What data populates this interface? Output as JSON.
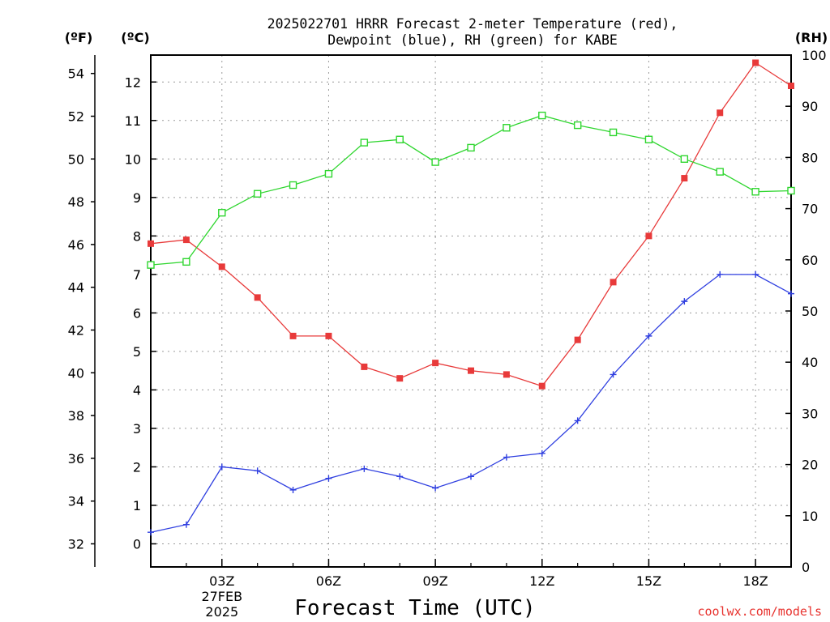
{
  "chart_data": {
    "type": "line",
    "title": "2025022701 HRRR Forecast 2-meter Temperature (red),",
    "subtitle": "Dewpoint (blue), RH (green) for KABE",
    "xlabel": "Forecast Time (UTC)",
    "credit": "coolwx.com/models",
    "units": {
      "fahrenheit": "(ºF)",
      "celsius": "(ºC)",
      "rh": "(RH)"
    },
    "x_hours": [
      1,
      2,
      3,
      4,
      5,
      6,
      7,
      8,
      9,
      10,
      11,
      12,
      13,
      14,
      15,
      16,
      17,
      18,
      19
    ],
    "xlim": [
      1,
      19
    ],
    "x_ticks": [
      {
        "hour": 3,
        "label": "03Z",
        "sub": [
          "27FEB",
          "2025"
        ]
      },
      {
        "hour": 6,
        "label": "06Z",
        "sub": []
      },
      {
        "hour": 9,
        "label": "09Z",
        "sub": []
      },
      {
        "hour": 12,
        "label": "12Z",
        "sub": []
      },
      {
        "hour": 15,
        "label": "15Z",
        "sub": []
      },
      {
        "hour": 18,
        "label": "18Z",
        "sub": []
      }
    ],
    "ylim_celsius": [
      -0.6,
      12.7
    ],
    "celsius_ticks": [
      0,
      1,
      2,
      3,
      4,
      5,
      6,
      7,
      8,
      9,
      10,
      11,
      12
    ],
    "fahrenheit_ticks": [
      32,
      34,
      36,
      38,
      40,
      42,
      44,
      46,
      48,
      50,
      52,
      54
    ],
    "ylim_rh": [
      0,
      100
    ],
    "rh_ticks": [
      0,
      10,
      20,
      30,
      40,
      50,
      60,
      70,
      80,
      90,
      100
    ],
    "grid": true,
    "series": [
      {
        "name": "Temperature",
        "axis": "celsius",
        "color": "#e83a3a",
        "marker": "filled-square",
        "values": [
          7.8,
          7.9,
          7.2,
          6.4,
          5.4,
          5.4,
          4.6,
          4.3,
          4.7,
          4.5,
          4.4,
          4.1,
          5.3,
          6.8,
          8.0,
          9.5,
          11.2,
          12.5,
          11.9
        ]
      },
      {
        "name": "Dewpoint",
        "axis": "celsius",
        "color": "#2f3fe0",
        "marker": "plus",
        "values": [
          0.3,
          0.5,
          2.0,
          1.9,
          1.4,
          1.7,
          1.95,
          1.75,
          1.45,
          1.75,
          2.25,
          2.35,
          3.2,
          4.4,
          5.4,
          6.3,
          7.0,
          7.0,
          6.5
        ]
      },
      {
        "name": "RH",
        "axis": "rh",
        "color": "#2fd62f",
        "marker": "open-square",
        "values": [
          59,
          59.6,
          69.2,
          72.9,
          74.6,
          76.8,
          82.9,
          83.5,
          79.1,
          81.9,
          85.8,
          88.2,
          86.3,
          84.9,
          83.5,
          79.7,
          77.2,
          73.3,
          73.5
        ]
      }
    ]
  }
}
